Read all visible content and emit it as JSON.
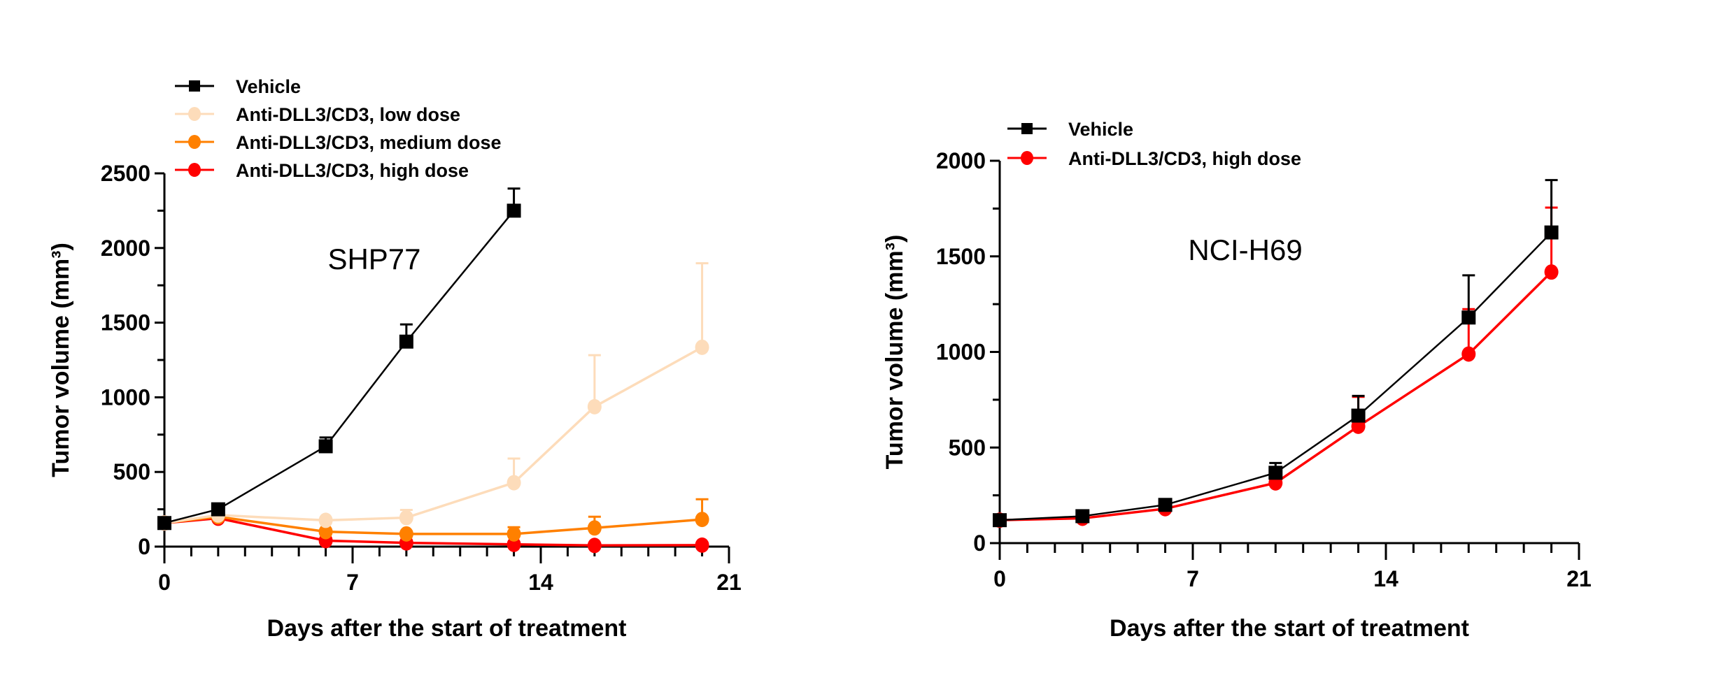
{
  "chart_data": [
    {
      "type": "line",
      "annotation": "SHP77",
      "xlabel": "Days after the start of treatment",
      "ylabel": "Tumor volume (mm³)",
      "xlim": [
        0,
        21
      ],
      "ylim": [
        0,
        2500
      ],
      "xticks": [
        0,
        7,
        14,
        21
      ],
      "yticks": [
        0,
        500,
        1000,
        1500,
        2000,
        2500
      ],
      "x_minor_step": 1,
      "y_minor_step": 250,
      "grid": false,
      "legend_position": "top-left",
      "series": [
        {
          "name": "Vehicle",
          "color": "#000000",
          "marker": "square",
          "x": [
            0,
            2,
            6,
            9,
            13
          ],
          "y": [
            158,
            250,
            672,
            1373,
            2250
          ],
          "error_upper": [
            null,
            null,
            731,
            1488,
            2398
          ]
        },
        {
          "name": "Anti-DLL3/CD3, low dose",
          "color": "#FDDCBA",
          "marker": "circle",
          "x": [
            0,
            2,
            6,
            9,
            13,
            16,
            20
          ],
          "y": [
            158,
            211,
            176,
            194,
            428,
            937,
            1335
          ],
          "error_upper": [
            null,
            null,
            null,
            246,
            590,
            1282,
            1898
          ]
        },
        {
          "name": "Anti-DLL3/CD3, medium dose",
          "color": "#FF8000",
          "marker": "circle",
          "x": [
            0,
            2,
            6,
            9,
            13,
            16,
            20
          ],
          "y": [
            158,
            200,
            100,
            85,
            85,
            125,
            182
          ],
          "error_upper": [
            null,
            null,
            null,
            null,
            130,
            200,
            317
          ]
        },
        {
          "name": "Anti-DLL3/CD3, high dose",
          "color": "#FF0000",
          "marker": "circle",
          "x": [
            0,
            2,
            6,
            9,
            13,
            16,
            20
          ],
          "y": [
            158,
            190,
            40,
            25,
            15,
            8,
            10
          ],
          "error_upper": [
            null,
            null,
            null,
            null,
            null,
            null,
            null
          ]
        }
      ]
    },
    {
      "type": "line",
      "annotation": "NCI-H69",
      "xlabel": "Days after the start of treatment",
      "ylabel": "Tumor volume (mm³)",
      "xlim": [
        0,
        21
      ],
      "ylim": [
        0,
        2000
      ],
      "xticks": [
        0,
        7,
        14,
        21
      ],
      "yticks": [
        0,
        500,
        1000,
        1500,
        2000
      ],
      "x_minor_step": 1,
      "y_minor_step": 250,
      "grid": false,
      "legend_position": "top-left",
      "series": [
        {
          "name": "Vehicle",
          "color": "#000000",
          "marker": "square",
          "x": [
            0,
            3,
            6,
            10,
            13,
            17,
            20
          ],
          "y": [
            120,
            141,
            200,
            368,
            667,
            1180,
            1625
          ],
          "error_upper": [
            null,
            null,
            null,
            419,
            770,
            1401,
            1899
          ]
        },
        {
          "name": "Anti-DLL3/CD3, high dose",
          "color": "#FF0000",
          "marker": "circle",
          "x": [
            0,
            3,
            6,
            10,
            13,
            17,
            20
          ],
          "y": [
            120,
            130,
            180,
            315,
            611,
            989,
            1418
          ],
          "error_upper": [
            null,
            null,
            null,
            null,
            765,
            1224,
            1755
          ]
        }
      ]
    }
  ]
}
